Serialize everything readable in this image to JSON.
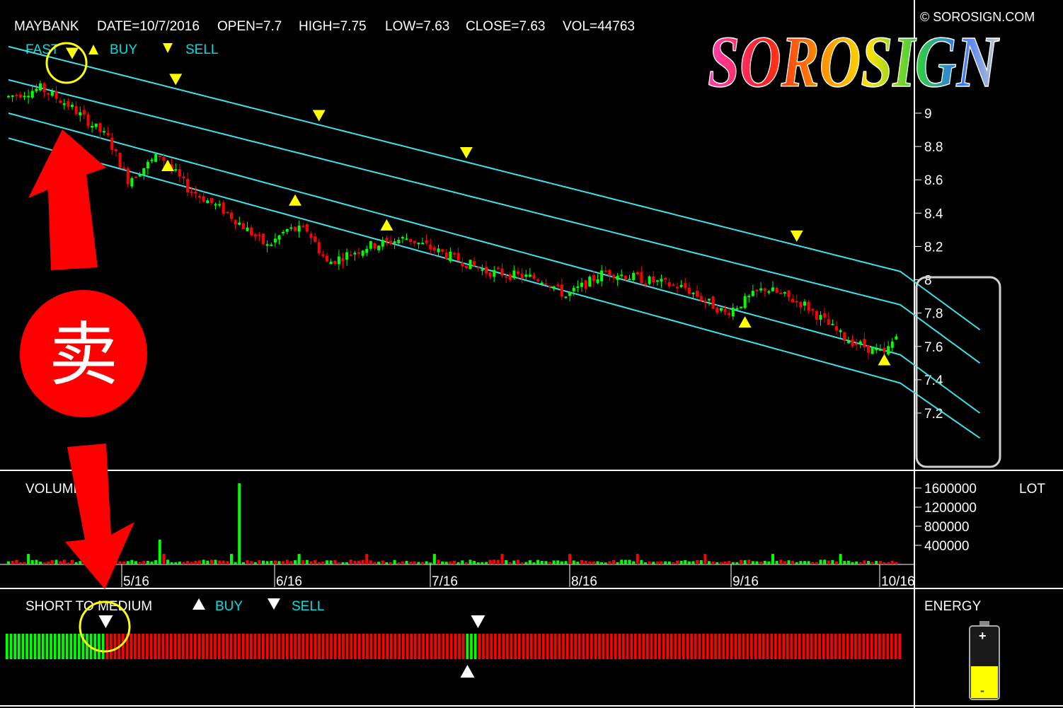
{
  "header": {
    "symbol": "MAYBANK",
    "date": "DATE=10/7/2016",
    "open": "OPEN=7.7",
    "high": "HIGH=7.75",
    "low": "LOW=7.63",
    "close": "CLOSE=7.63",
    "vol": "VOL=44763",
    "copyright": "© SOROSIGN.COM",
    "logo_text": "SOROSIGN"
  },
  "legend_top": {
    "fast": "FAST",
    "buy": "BUY",
    "sell": "SELL"
  },
  "volume_panel": {
    "label": "VOLUME",
    "unit": "LOT"
  },
  "short_panel": {
    "label": "SHORT TO MEDIUM",
    "buy": "BUY",
    "sell": "SELL"
  },
  "energy_panel": {
    "label": "ENERGY"
  },
  "annotation": {
    "sell_char": "卖"
  },
  "colors": {
    "up": "#00ff00",
    "down": "#ff0000",
    "channel": "#40e0e8",
    "signal": "#ffff00",
    "grid": "#ffffff",
    "highlight": "#ffff00",
    "annotation_red": "#ff0000",
    "legend_cyan": "#00e0e0"
  },
  "chart_data": {
    "type": "candlestick",
    "x_ticks": [
      "5/16",
      "6/16",
      "7/16",
      "8/16",
      "9/16",
      "10/16"
    ],
    "y_ticks": [
      "9",
      "8.8",
      "8.6",
      "8.4",
      "8.2",
      "8",
      "7.8",
      "7.6",
      "7.4",
      "7.2"
    ],
    "ylim": [
      7.0,
      9.3
    ],
    "volume_ticks": [
      "1600000",
      "1200000",
      "800000",
      "400000"
    ],
    "volume_ylim": [
      0,
      1800000
    ],
    "last_bar": {
      "open": 7.7,
      "high": 7.75,
      "low": 7.63,
      "close": 7.63,
      "volume": 44763
    },
    "price_anchors": [
      [
        0,
        9.1
      ],
      [
        8,
        9.15
      ],
      [
        15,
        9.05
      ],
      [
        25,
        8.85
      ],
      [
        30,
        8.6
      ],
      [
        38,
        8.75
      ],
      [
        45,
        8.55
      ],
      [
        55,
        8.4
      ],
      [
        65,
        8.2
      ],
      [
        70,
        8.3
      ],
      [
        75,
        8.3
      ],
      [
        80,
        8.1
      ],
      [
        90,
        8.2
      ],
      [
        100,
        8.25
      ],
      [
        110,
        8.15
      ],
      [
        120,
        8.05
      ],
      [
        135,
        8.0
      ],
      [
        140,
        7.9
      ],
      [
        150,
        8.05
      ],
      [
        160,
        8.0
      ],
      [
        170,
        7.95
      ],
      [
        180,
        7.8
      ],
      [
        190,
        7.95
      ],
      [
        200,
        7.85
      ],
      [
        210,
        7.65
      ],
      [
        220,
        7.55
      ],
      [
        224,
        7.7
      ]
    ],
    "channel_lines": [
      {
        "name": "upper_outer",
        "values": [
          [
            0,
            9.4
          ],
          [
            224,
            8.05
          ],
          [
            244,
            7.7
          ]
        ]
      },
      {
        "name": "upper_inner",
        "values": [
          [
            0,
            9.2
          ],
          [
            224,
            7.85
          ],
          [
            244,
            7.5
          ]
        ]
      },
      {
        "name": "lower_inner",
        "values": [
          [
            0,
            9.0
          ],
          [
            224,
            7.55
          ],
          [
            244,
            7.2
          ]
        ]
      },
      {
        "name": "lower_outer",
        "values": [
          [
            0,
            8.85
          ],
          [
            224,
            7.38
          ],
          [
            244,
            7.05
          ]
        ]
      }
    ],
    "sell_signals_idx": [
      16,
      42,
      78,
      115,
      198
    ],
    "buy_signals_idx": [
      40,
      72,
      95,
      185,
      220
    ],
    "volume_spike_idx": [
      58,
      38
    ],
    "short_to_medium": {
      "initial_green_bars": 25,
      "green_bars_after": [
        115,
        116,
        117
      ],
      "total_bars": 224,
      "sell_signal_idx": [
        25,
        118
      ],
      "buy_signal_idx": [
        115
      ]
    },
    "energy_level": 0.45
  }
}
